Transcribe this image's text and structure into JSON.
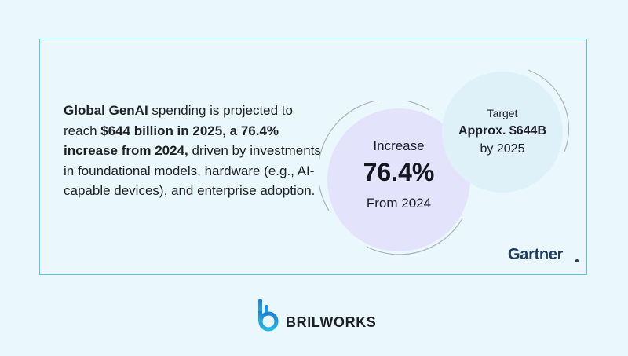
{
  "stat": {
    "text_parts": [
      {
        "text": "Global GenAI",
        "bold": true
      },
      {
        "text": " spending is projected to reach ",
        "bold": false
      },
      {
        "text": "$644 billion in 2025, a 76.4% increase from 2024,",
        "bold": true
      },
      {
        "text": " driven by investments in foundational models, hardware (e.g., AI-capable devices), and enterprise adoption.",
        "bold": false
      }
    ]
  },
  "increase": {
    "label": "Increase",
    "value": "76.4%",
    "subtitle": "From 2024"
  },
  "target": {
    "label": "Target",
    "value": "Approx. $644B",
    "subtitle": "by 2025"
  },
  "source": {
    "name": "Gartner"
  },
  "brand": {
    "name": "BRILWORKS",
    "logo_icon": "brilworks-logo-icon"
  },
  "colors": {
    "background": "#eaf8fd",
    "border": "#5fc3e2",
    "increase_circle": "#e3e4fb",
    "target_circle": "#dff1f8",
    "gartner": "#1f3a5f",
    "brand_blue": "#1e9bd7"
  }
}
